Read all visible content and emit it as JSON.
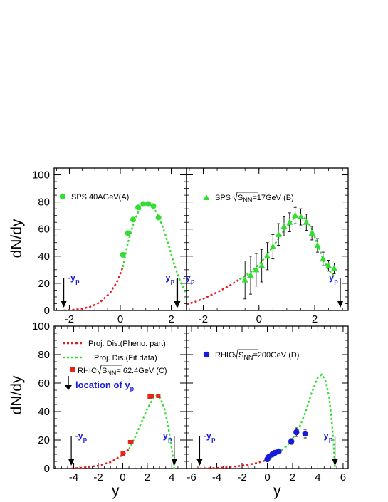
{
  "axis_labels": {
    "y": "dN/dy",
    "x": "y"
  },
  "colors": {
    "pheno": "#e41a1c",
    "fit": "#33dd33",
    "arrows_text": "#1a1adb",
    "sps40": "#33dd33",
    "sps17": "#33dd33",
    "rhic62": "#e4261a",
    "rhic200": "#1a1adb"
  },
  "chart_data": [
    {
      "id": "A",
      "type": "scatter",
      "legend": "SPS 40AGeV(A)",
      "xlim": [
        -2.6,
        2.6
      ],
      "ylim": [
        0,
        105
      ],
      "xticks": [
        -2,
        0,
        2
      ],
      "xtick_labels": [
        "-2",
        "0",
        "2"
      ],
      "yticks": [
        0,
        20,
        40,
        60,
        80,
        100
      ],
      "ytick_labels": [
        "0",
        "20",
        "40",
        "60",
        "80",
        "100"
      ],
      "beam_rapidity": 2.22,
      "arrow_labels": {
        "minus": "-y",
        "plus": "y",
        "sub": "p"
      },
      "marker": "circle",
      "points": [
        {
          "x": 0.1,
          "y": 41
        },
        {
          "x": 0.3,
          "y": 57
        },
        {
          "x": 0.5,
          "y": 67
        },
        {
          "x": 0.7,
          "y": 76
        },
        {
          "x": 0.9,
          "y": 78.5
        },
        {
          "x": 1.1,
          "y": 78.5
        },
        {
          "x": 1.3,
          "y": 77
        },
        {
          "x": 1.5,
          "y": 68.5
        }
      ],
      "pheno_curve": [
        [
          -2.22,
          0
        ],
        [
          -2.0,
          0.3
        ],
        [
          -1.6,
          1
        ],
        [
          -1.2,
          2.5
        ],
        [
          -0.8,
          6
        ],
        [
          -0.4,
          13
        ],
        [
          -0.1,
          22
        ],
        [
          0.1,
          32
        ]
      ],
      "fit_curve": [
        [
          0.1,
          32
        ],
        [
          0.3,
          50
        ],
        [
          0.5,
          63
        ],
        [
          0.7,
          72.5
        ],
        [
          0.9,
          78
        ],
        [
          1.1,
          79
        ],
        [
          1.3,
          76
        ],
        [
          1.5,
          69.5
        ],
        [
          1.7,
          60
        ],
        [
          1.9,
          48
        ],
        [
          2.1,
          35
        ],
        [
          2.3,
          24
        ],
        [
          2.5,
          16
        ],
        [
          2.6,
          12
        ]
      ]
    },
    {
      "id": "B",
      "type": "scatter",
      "legend_main": "SPS",
      "legend_sqrt": "S",
      "legend_sub": "NN",
      "legend_rest": "=17GeV (B)",
      "xlim": [
        -2.6,
        3.2
      ],
      "ylim": [
        0,
        105
      ],
      "xticks": [
        -2,
        0,
        2
      ],
      "xtick_labels": [
        "-2",
        "0",
        "2"
      ],
      "beam_rapidity_minus": -2.92,
      "beam_rapidity_plus": 2.92,
      "arrow_labels": {
        "minus": "-y",
        "plus": "y",
        "sub": "p"
      },
      "marker": "triangle",
      "points": [
        {
          "x": -0.5,
          "y": 22.5,
          "err": 14
        },
        {
          "x": -0.3,
          "y": 26,
          "err": 14
        },
        {
          "x": -0.1,
          "y": 30,
          "err": 12
        },
        {
          "x": 0.1,
          "y": 33,
          "err": 12
        },
        {
          "x": 0.3,
          "y": 40,
          "err": 10
        },
        {
          "x": 0.5,
          "y": 47,
          "err": 9
        },
        {
          "x": 0.7,
          "y": 56,
          "err": 8
        },
        {
          "x": 0.9,
          "y": 62,
          "err": 7
        },
        {
          "x": 1.1,
          "y": 65,
          "err": 7
        },
        {
          "x": 1.3,
          "y": 70,
          "err": 6
        },
        {
          "x": 1.5,
          "y": 69,
          "err": 6
        },
        {
          "x": 1.7,
          "y": 65,
          "err": 6
        },
        {
          "x": 1.9,
          "y": 57,
          "err": 5
        },
        {
          "x": 2.1,
          "y": 48,
          "err": 5
        },
        {
          "x": 2.3,
          "y": 38,
          "err": 5
        },
        {
          "x": 2.5,
          "y": 33,
          "err": 4
        },
        {
          "x": 2.7,
          "y": 31,
          "err": 4
        }
      ],
      "pheno_curve": [
        [
          -2.6,
          4.5
        ],
        [
          -2.2,
          7
        ],
        [
          -1.8,
          10.5
        ],
        [
          -1.4,
          14.5
        ],
        [
          -1.0,
          19
        ],
        [
          -0.7,
          23
        ]
      ],
      "fit_curve": [
        [
          -0.7,
          23
        ],
        [
          -0.3,
          28
        ],
        [
          0.1,
          36
        ],
        [
          0.5,
          47
        ],
        [
          0.9,
          59
        ],
        [
          1.3,
          69
        ],
        [
          1.5,
          70
        ],
        [
          1.7,
          67
        ],
        [
          1.9,
          60
        ],
        [
          2.1,
          49
        ],
        [
          2.3,
          38
        ],
        [
          2.5,
          30
        ],
        [
          2.7,
          25
        ]
      ]
    },
    {
      "id": "C",
      "type": "scatter",
      "legend_pheno": "Proj. Dis.(Pheno. part)",
      "legend_fit": "Proj. Dis.(Fit data)",
      "legend_rhic_pre": "RHIC",
      "legend_sqrt": "S",
      "legend_sub": "NN",
      "legend_rest": "= 62.4GeV (C)",
      "legend_location": "location of y",
      "legend_location_sub": "p",
      "xlim": [
        -5.6,
        5.2
      ],
      "ylim": [
        0,
        100
      ],
      "xticks": [
        -4,
        -2,
        0,
        2,
        4
      ],
      "xtick_labels": [
        "-4",
        "-2",
        "0",
        "2",
        "4"
      ],
      "yticks": [
        0,
        20,
        40,
        60,
        80,
        100
      ],
      "ytick_labels": [
        "0",
        "20",
        "40",
        "60",
        "80",
        "100"
      ],
      "beam_rapidity": 4.2,
      "arrow_labels": {
        "minus": "-y",
        "plus": "y",
        "sub": "p"
      },
      "marker": "square",
      "points": [
        {
          "x": 0.0,
          "y": 10.5
        },
        {
          "x": 0.6,
          "y": 18.5
        },
        {
          "x": 0.7,
          "y": 18.5
        },
        {
          "x": 2.2,
          "y": 50.5
        },
        {
          "x": 2.4,
          "y": 51
        },
        {
          "x": 2.9,
          "y": 51
        }
      ],
      "pheno_curve": [
        [
          -4.2,
          0
        ],
        [
          -3.0,
          0.8
        ],
        [
          -2.0,
          2
        ],
        [
          -1.0,
          4.5
        ],
        [
          0.0,
          9.5
        ],
        [
          0.5,
          13.5
        ]
      ],
      "fit_curve": [
        [
          0.5,
          13.5
        ],
        [
          1.0,
          22
        ],
        [
          1.5,
          32
        ],
        [
          2.0,
          42
        ],
        [
          2.5,
          49.5
        ],
        [
          2.8,
          51.5
        ],
        [
          3.1,
          49
        ],
        [
          3.4,
          42
        ],
        [
          3.7,
          30
        ],
        [
          3.9,
          19
        ],
        [
          4.1,
          8
        ],
        [
          4.2,
          0
        ]
      ]
    },
    {
      "id": "D",
      "type": "scatter",
      "legend_rhic_pre": "RHIC",
      "legend_sqrt": "S",
      "legend_sub": "NN",
      "legend_rest": "=200GeV (D)",
      "xlim": [
        -6.4,
        6.4
      ],
      "ylim": [
        0,
        100
      ],
      "xticks": [
        -6,
        -4,
        -2,
        0,
        2,
        4,
        6
      ],
      "xtick_labels": [
        "-6",
        "-4",
        "-2",
        "0",
        "2",
        "4",
        "6"
      ],
      "beam_rapidity": 5.36,
      "arrow_labels": {
        "minus": "-y",
        "plus": "y",
        "sub": "p"
      },
      "marker": "circle",
      "points": [
        {
          "x": 0.0,
          "y": 6.5,
          "err": 1
        },
        {
          "x": 0.1,
          "y": 8,
          "err": 1
        },
        {
          "x": 0.4,
          "y": 10,
          "err": 1
        },
        {
          "x": 0.6,
          "y": 11,
          "err": 1
        },
        {
          "x": 0.9,
          "y": 12,
          "err": 1
        },
        {
          "x": 1.9,
          "y": 19,
          "err": 2
        },
        {
          "x": 2.3,
          "y": 25.5,
          "err": 3
        },
        {
          "x": 3.0,
          "y": 24.5,
          "err": 3
        }
      ],
      "pheno_curve": [
        [
          -5.36,
          0
        ],
        [
          -4.0,
          0.4
        ],
        [
          -3.0,
          1
        ],
        [
          -2.0,
          2
        ],
        [
          -1.0,
          3.5
        ],
        [
          0.0,
          6
        ]
      ],
      "fit_curve": [
        [
          0.0,
          6
        ],
        [
          0.5,
          9
        ],
        [
          1.0,
          12
        ],
        [
          1.5,
          15.5
        ],
        [
          2.0,
          21
        ],
        [
          2.5,
          28
        ],
        [
          3.0,
          39
        ],
        [
          3.5,
          53
        ],
        [
          4.0,
          64
        ],
        [
          4.3,
          66
        ],
        [
          4.6,
          62
        ],
        [
          4.9,
          50
        ],
        [
          5.1,
          34
        ],
        [
          5.25,
          18
        ],
        [
          5.36,
          0
        ]
      ]
    }
  ]
}
